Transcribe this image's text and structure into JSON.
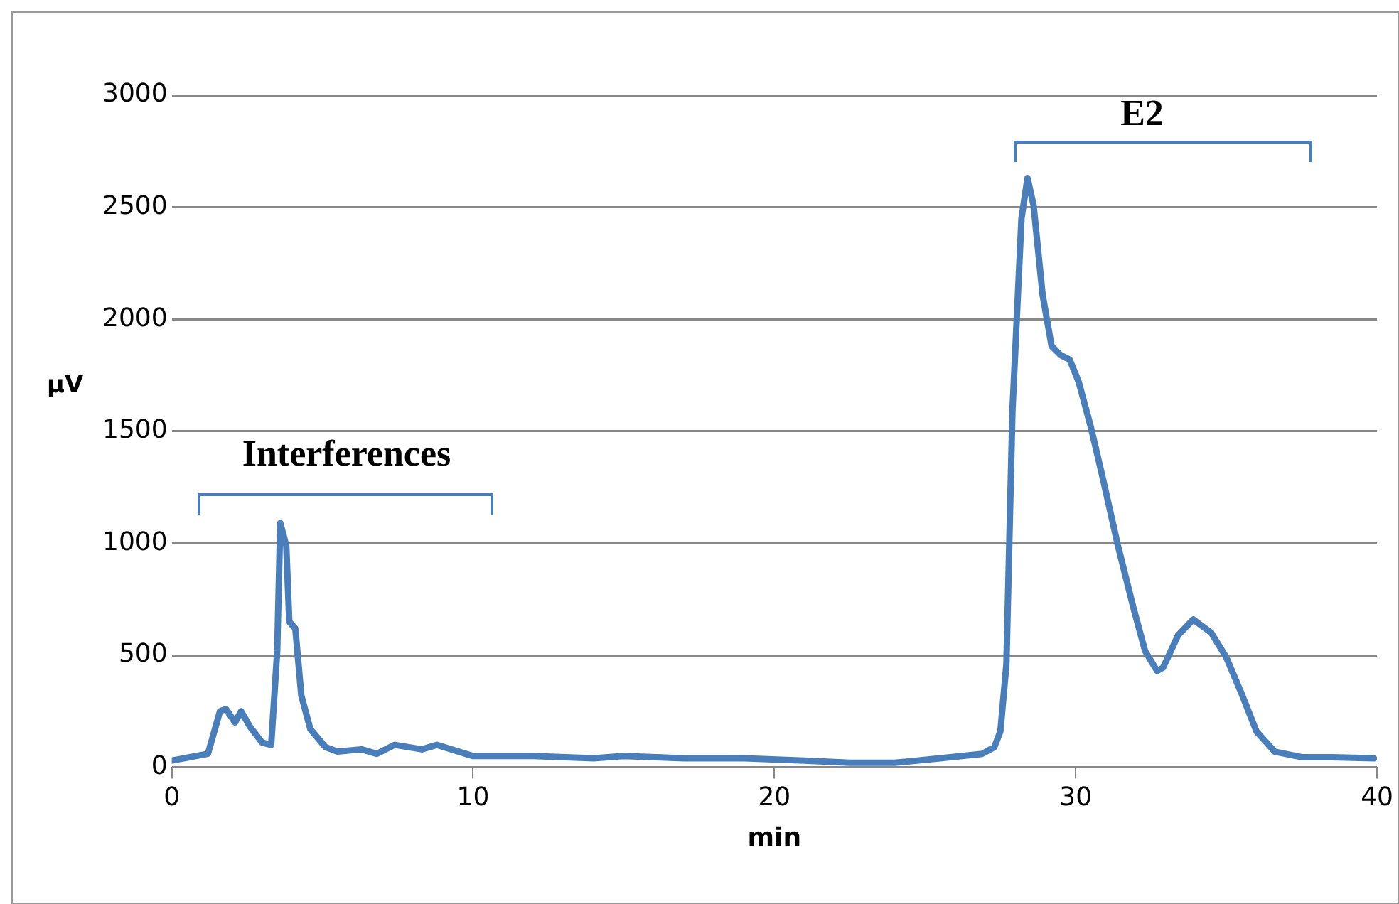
{
  "chart_data": {
    "type": "line",
    "xlabel": "min",
    "ylabel": "µV",
    "annotations": [
      "Interferences",
      "E2"
    ],
    "xlim": [
      0,
      40
    ],
    "xticks": [
      0,
      10,
      20,
      30,
      40
    ],
    "ylim": [
      0,
      3000
    ],
    "yticks": [
      0,
      500,
      1000,
      1500,
      2000,
      2500,
      3000
    ],
    "grid": "y",
    "marker": "none",
    "line_style": "solid",
    "legend": false,
    "series": [
      {
        "color": "#4a7ebb",
        "x": [
          0,
          1.2,
          1.6,
          1.8,
          2.1,
          2.3,
          2.6,
          3.0,
          3.3,
          3.5,
          3.6,
          3.8,
          3.9,
          4.1,
          4.3,
          4.6,
          5.1,
          5.5,
          6.3,
          6.8,
          7.4,
          8.3,
          8.8,
          10,
          12,
          14,
          15,
          17,
          19,
          21,
          22.5,
          24,
          25.5,
          26.9,
          27.3,
          27.5,
          27.7,
          27.9,
          28.2,
          28.4,
          28.6,
          28.9,
          29.2,
          29.5,
          29.8,
          30.1,
          30.5,
          30.9,
          31.4,
          31.9,
          32.3,
          32.7,
          32.9,
          33.4,
          33.9,
          34.5,
          35.0,
          35.5,
          36,
          36.6,
          37.5,
          38.5,
          39.9
        ],
        "values": [
          30,
          60,
          250,
          260,
          200,
          250,
          180,
          110,
          100,
          520,
          1090,
          990,
          650,
          620,
          320,
          170,
          90,
          70,
          80,
          60,
          100,
          80,
          100,
          50,
          50,
          40,
          50,
          40,
          40,
          30,
          20,
          20,
          40,
          60,
          90,
          160,
          460,
          1590,
          2450,
          2630,
          2510,
          2110,
          1880,
          1840,
          1820,
          1720,
          1520,
          1290,
          990,
          720,
          520,
          430,
          445,
          590,
          660,
          600,
          490,
          330,
          160,
          70,
          45,
          45,
          40
        ]
      }
    ]
  }
}
